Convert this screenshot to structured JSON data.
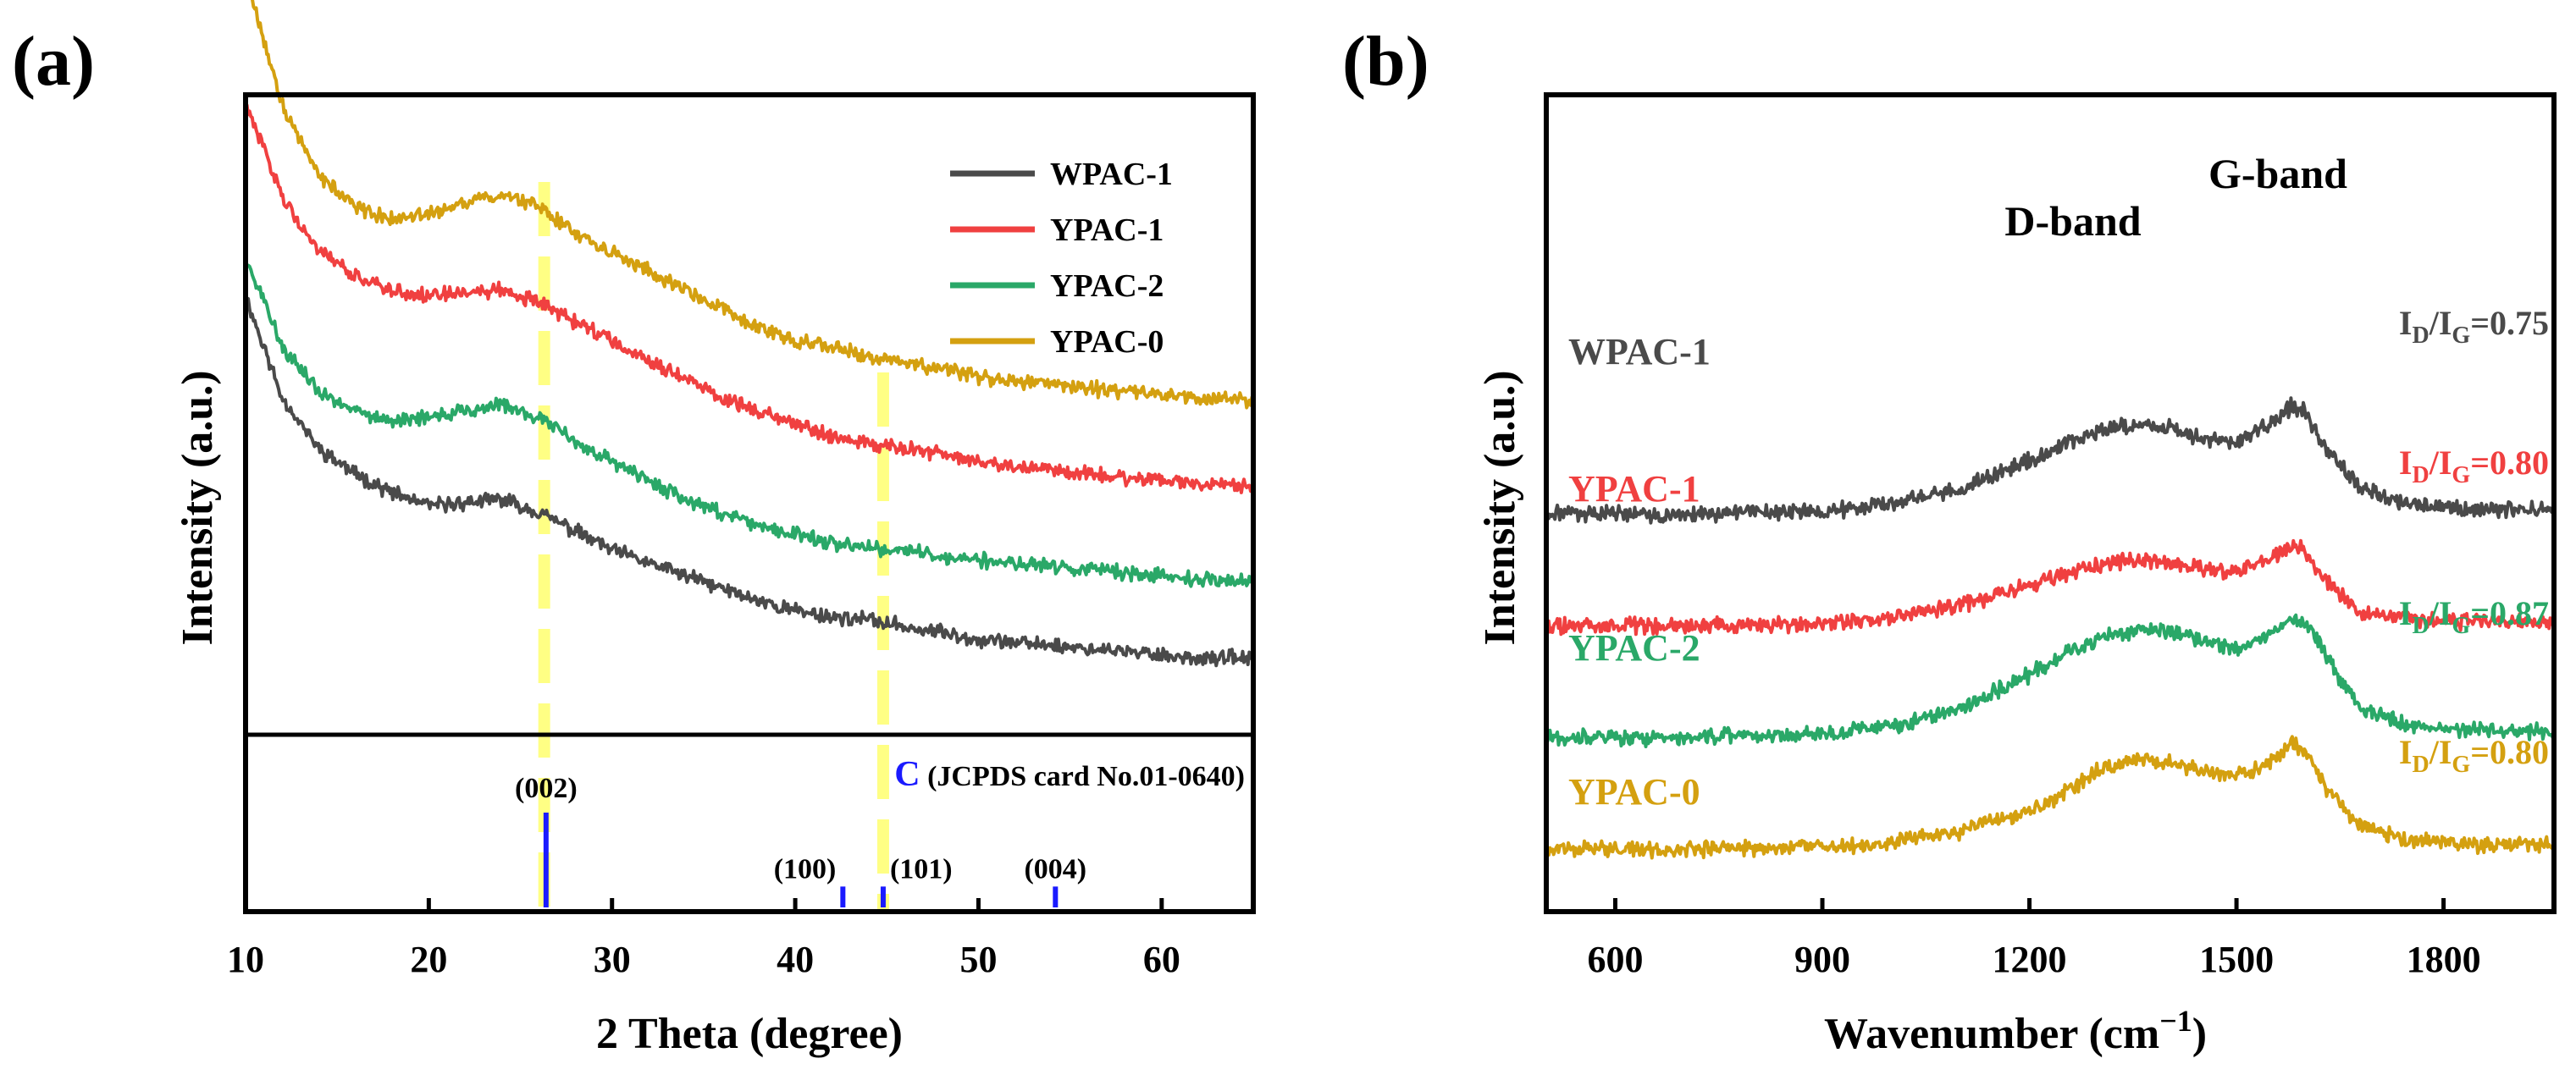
{
  "chart_data": [
    {
      "panel": "(a)",
      "type": "line",
      "title": "",
      "xlabel": "2 Theta (degree)",
      "ylabel": "Intensity (a.u.)",
      "xlim": [
        10,
        65
      ],
      "xticks": [
        10,
        20,
        30,
        40,
        50,
        60
      ],
      "grid": false,
      "legend_position": "top-right",
      "series": [
        {
          "name": "WPAC-1",
          "color": "#4a4a4a",
          "x": [
            10,
            12,
            14,
            16,
            18,
            20,
            22,
            24,
            26,
            28,
            30,
            32,
            34,
            36,
            38,
            40,
            42,
            44,
            46,
            48,
            50,
            52,
            54,
            56,
            58,
            60,
            62,
            65
          ],
          "y": [
            0.68,
            0.52,
            0.44,
            0.4,
            0.37,
            0.35,
            0.355,
            0.36,
            0.34,
            0.31,
            0.28,
            0.26,
            0.24,
            0.22,
            0.2,
            0.185,
            0.175,
            0.17,
            0.16,
            0.15,
            0.14,
            0.135,
            0.13,
            0.125,
            0.12,
            0.115,
            0.11,
            0.11
          ]
        },
        {
          "name": "YPAC-1",
          "color": "#f04040",
          "x": [
            10,
            12,
            14,
            16,
            18,
            20,
            22,
            24,
            26,
            28,
            30,
            32,
            34,
            36,
            38,
            40,
            42,
            44,
            46,
            48,
            50,
            52,
            54,
            56,
            58,
            60,
            62,
            65
          ],
          "y": [
            0.98,
            0.84,
            0.75,
            0.71,
            0.69,
            0.68,
            0.685,
            0.69,
            0.67,
            0.64,
            0.61,
            0.58,
            0.55,
            0.52,
            0.5,
            0.48,
            0.46,
            0.45,
            0.44,
            0.43,
            0.42,
            0.41,
            0.405,
            0.4,
            0.395,
            0.39,
            0.385,
            0.38
          ]
        },
        {
          "name": "YPAC-2",
          "color": "#2aa868",
          "x": [
            10,
            12,
            14,
            16,
            18,
            20,
            22,
            24,
            26,
            28,
            30,
            32,
            34,
            36,
            38,
            40,
            42,
            44,
            46,
            48,
            50,
            52,
            54,
            56,
            58,
            60,
            62,
            65
          ],
          "y": [
            0.74,
            0.6,
            0.53,
            0.5,
            0.485,
            0.49,
            0.5,
            0.51,
            0.49,
            0.45,
            0.42,
            0.39,
            0.36,
            0.34,
            0.32,
            0.305,
            0.29,
            0.285,
            0.28,
            0.27,
            0.265,
            0.26,
            0.255,
            0.25,
            0.245,
            0.24,
            0.235,
            0.23
          ]
        },
        {
          "name": "YPAC-0",
          "color": "#d4a010",
          "x": [
            10,
            12,
            14,
            16,
            18,
            20,
            22,
            24,
            26,
            28,
            30,
            32,
            34,
            36,
            38,
            40,
            42,
            44,
            46,
            48,
            50,
            52,
            54,
            56,
            58,
            60,
            62,
            65
          ],
          "y": [
            1.18,
            0.98,
            0.87,
            0.82,
            0.8,
            0.81,
            0.83,
            0.84,
            0.82,
            0.78,
            0.75,
            0.72,
            0.69,
            0.66,
            0.63,
            0.61,
            0.6,
            0.585,
            0.575,
            0.565,
            0.555,
            0.545,
            0.54,
            0.535,
            0.53,
            0.525,
            0.52,
            0.515
          ]
        }
      ],
      "highlight_lines_x": [
        26.3,
        44.8
      ],
      "reference": {
        "label_prefix": "C",
        "label_rest": " (JCPDS card No.01-0640)",
        "color": "#1a1aff",
        "peaks": [
          {
            "x": 26.4,
            "label": "(002)",
            "rel_intensity": 1.0
          },
          {
            "x": 42.6,
            "label": "(100)",
            "rel_intensity": 0.22
          },
          {
            "x": 44.8,
            "label": "(101)",
            "rel_intensity": 0.22
          },
          {
            "x": 54.2,
            "label": "(004)",
            "rel_intensity": 0.22
          }
        ]
      }
    },
    {
      "panel": "(b)",
      "type": "line",
      "title": "",
      "xlabel_main": "Wavenumber (cm",
      "xlabel_sup": "−1",
      "xlabel_close": ")",
      "ylabel": "Intensity (a.u.)",
      "xlim": [
        500,
        1960
      ],
      "xticks": [
        600,
        900,
        1200,
        1500,
        1800
      ],
      "grid": false,
      "annotations": {
        "d_band": "D-band",
        "g_band": "G-band"
      },
      "ratio_prefix": {
        "main": "I",
        "sub_d": "D",
        "slash": "/I",
        "sub_g": "G"
      },
      "series": [
        {
          "name": "WPAC-1",
          "color": "#4a4a4a",
          "ratio": "=0.75",
          "x": [
            500,
            700,
            900,
            1000,
            1100,
            1200,
            1250,
            1300,
            1350,
            1400,
            1450,
            1500,
            1550,
            1580,
            1600,
            1630,
            1680,
            1750,
            1850,
            1960
          ],
          "y": [
            3.0,
            3.0,
            3.02,
            3.08,
            3.22,
            3.48,
            3.62,
            3.74,
            3.8,
            3.78,
            3.66,
            3.64,
            3.82,
            3.96,
            3.92,
            3.58,
            3.22,
            3.08,
            3.04,
            3.03
          ]
        },
        {
          "name": "YPAC-1",
          "color": "#f04040",
          "ratio": "=0.80",
          "x": [
            500,
            700,
            900,
            1000,
            1100,
            1200,
            1250,
            1300,
            1350,
            1400,
            1450,
            1500,
            1550,
            1580,
            1600,
            1630,
            1680,
            1750,
            1850,
            1960
          ],
          "y": [
            2.0,
            2.0,
            2.02,
            2.07,
            2.18,
            2.36,
            2.46,
            2.54,
            2.58,
            2.57,
            2.5,
            2.48,
            2.6,
            2.72,
            2.68,
            2.4,
            2.12,
            2.05,
            2.03,
            2.03
          ]
        },
        {
          "name": "YPAC-2",
          "color": "#2aa868",
          "ratio": "=0.87",
          "x": [
            500,
            700,
            900,
            1000,
            1100,
            1200,
            1250,
            1300,
            1350,
            1400,
            1450,
            1500,
            1550,
            1580,
            1600,
            1630,
            1680,
            1750,
            1850,
            1960
          ],
          "y": [
            1.0,
            1.0,
            1.03,
            1.1,
            1.26,
            1.56,
            1.74,
            1.88,
            1.96,
            1.95,
            1.86,
            1.8,
            1.92,
            2.06,
            2.04,
            1.72,
            1.26,
            1.1,
            1.06,
            1.05
          ]
        },
        {
          "name": "YPAC-0",
          "color": "#d4a010",
          "ratio": "=0.80",
          "x": [
            500,
            700,
            900,
            1000,
            1100,
            1200,
            1250,
            1300,
            1350,
            1400,
            1450,
            1500,
            1550,
            1580,
            1600,
            1630,
            1680,
            1750,
            1850,
            1960
          ],
          "y": [
            0.0,
            0.0,
            0.02,
            0.06,
            0.16,
            0.34,
            0.5,
            0.7,
            0.8,
            0.78,
            0.7,
            0.66,
            0.78,
            0.94,
            0.9,
            0.52,
            0.2,
            0.08,
            0.04,
            0.04
          ]
        }
      ]
    }
  ]
}
